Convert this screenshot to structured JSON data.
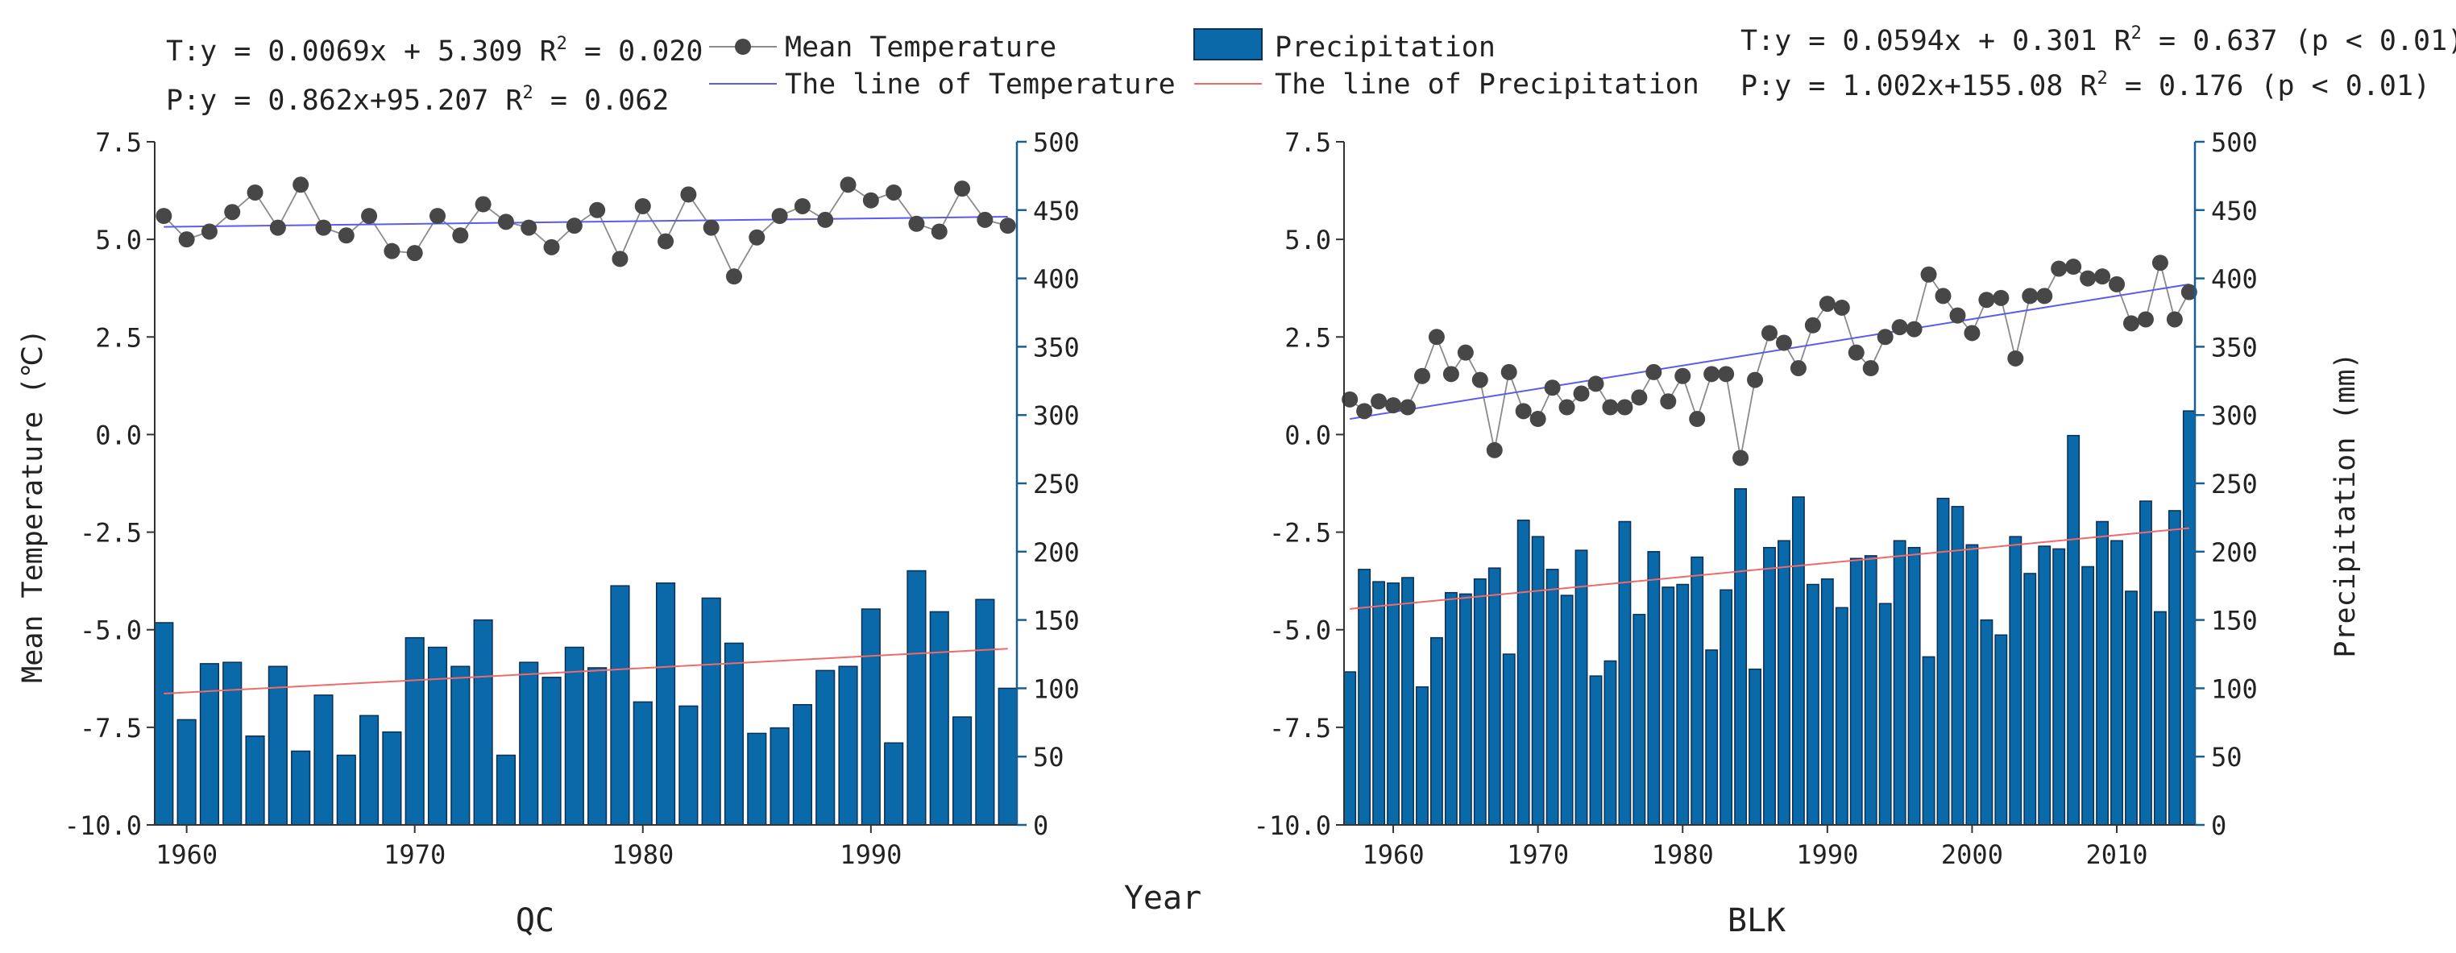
{
  "legend": {
    "mean_temperature": "Mean Temperature",
    "temperature_line": "The line of Temperature",
    "precipitation": "Precipitation",
    "precipitation_line": "The line of Precipitation"
  },
  "shared_xlabel": "Year",
  "colors": {
    "bar": "#0A69A9",
    "bar_edge": "#0B2F55",
    "marker": "#474747",
    "marker_line": "#8a8a8a",
    "temp_trend": "#5B5BF0",
    "precip_trend": "#F06A6A",
    "right_axis": "#1A5F8F"
  },
  "chart_data": [
    {
      "type": "bar+line",
      "name": "QC",
      "title": "QC",
      "equations": {
        "T": "T:y = 0.0069x + 5.309 R",
        "T_r2": " = 0.020",
        "P": "P:y = 0.862x+95.207 R",
        "P_r2": " = 0.062"
      },
      "ylabel_left": "Mean Temperature (℃)",
      "ylabel_right": "",
      "xlim": [
        1958.6,
        1996.4
      ],
      "ylim_left": [
        -10,
        7.5
      ],
      "ylim_right": [
        0,
        500
      ],
      "yticks_left": [
        "-10.0",
        "-7.5",
        "-5.0",
        "-2.5",
        "0.0",
        "2.5",
        "5.0",
        "7.5"
      ],
      "yticks_right": [
        "0",
        "50",
        "100",
        "150",
        "200",
        "250",
        "300",
        "350",
        "400",
        "450",
        "500"
      ],
      "xticks": [
        "1960",
        "1970",
        "1980",
        "1990"
      ],
      "years": [
        1959,
        1960,
        1961,
        1962,
        1963,
        1964,
        1965,
        1966,
        1967,
        1968,
        1969,
        1970,
        1971,
        1972,
        1973,
        1974,
        1975,
        1976,
        1977,
        1978,
        1979,
        1980,
        1981,
        1982,
        1983,
        1984,
        1985,
        1986,
        1987,
        1988,
        1989,
        1990,
        1991,
        1992,
        1993,
        1994,
        1995,
        1996
      ],
      "temperature": [
        5.6,
        5.0,
        5.2,
        5.7,
        6.2,
        5.3,
        6.4,
        5.3,
        5.1,
        5.6,
        4.7,
        4.65,
        5.6,
        5.1,
        5.9,
        5.45,
        5.3,
        4.8,
        5.35,
        5.75,
        4.5,
        5.85,
        4.95,
        6.15,
        5.3,
        4.05,
        5.05,
        5.6,
        5.85,
        5.5,
        6.4,
        6.0,
        6.2,
        5.4,
        5.2,
        6.3,
        5.5,
        5.35
      ],
      "precipitation": [
        148,
        77,
        118,
        119,
        65,
        116,
        54,
        95,
        51,
        80,
        68,
        137,
        130,
        116,
        150,
        51,
        119,
        108,
        130,
        115,
        175,
        90,
        177,
        87,
        166,
        133,
        67,
        71,
        88,
        113,
        116,
        158,
        60,
        186,
        156,
        79,
        165,
        100
      ],
      "temp_trend": [
        5.32,
        5.58
      ],
      "precip_trend": [
        96.1,
        129.0
      ]
    },
    {
      "type": "bar+line",
      "name": "BLK",
      "title": "BLK",
      "equations": {
        "T": "T:y = 0.0594x + 0.301 R",
        "T_r2": " = 0.637 (p < 0.01)",
        "P": "P:y = 1.002x+155.08 R",
        "P_r2": " = 0.176 (p < 0.01)"
      },
      "ylabel_left": "",
      "ylabel_right": "Precipitation (mm)",
      "xlim": [
        1956.6,
        2015.4
      ],
      "ylim_left": [
        -10,
        7.5
      ],
      "ylim_right": [
        0,
        500
      ],
      "yticks_left": [
        "-10.0",
        "-7.5",
        "-5.0",
        "-2.5",
        "0.0",
        "2.5",
        "5.0",
        "7.5"
      ],
      "yticks_right": [
        "0",
        "50",
        "100",
        "150",
        "200",
        "250",
        "300",
        "350",
        "400",
        "450",
        "500"
      ],
      "xticks": [
        "1960",
        "1970",
        "1980",
        "1990",
        "2000",
        "2010"
      ],
      "years": [
        1957,
        1958,
        1959,
        1960,
        1961,
        1962,
        1963,
        1964,
        1965,
        1966,
        1967,
        1968,
        1969,
        1970,
        1971,
        1972,
        1973,
        1974,
        1975,
        1976,
        1977,
        1978,
        1979,
        1980,
        1981,
        1982,
        1983,
        1984,
        1985,
        1986,
        1987,
        1988,
        1989,
        1990,
        1991,
        1992,
        1993,
        1994,
        1995,
        1996,
        1997,
        1998,
        1999,
        2000,
        2001,
        2002,
        2003,
        2004,
        2005,
        2006,
        2007,
        2008,
        2009,
        2010,
        2011,
        2012,
        2013,
        2014,
        2015
      ],
      "temperature": [
        0.9,
        0.6,
        0.85,
        0.75,
        0.7,
        1.5,
        2.5,
        1.55,
        2.1,
        1.4,
        -0.4,
        1.6,
        0.6,
        0.4,
        1.2,
        0.7,
        1.05,
        1.3,
        0.7,
        0.7,
        0.95,
        1.6,
        0.85,
        1.5,
        0.4,
        1.55,
        1.55,
        -0.6,
        1.4,
        2.6,
        2.35,
        1.7,
        2.8,
        3.35,
        3.25,
        2.1,
        1.7,
        2.5,
        2.75,
        2.7,
        4.1,
        3.55,
        3.05,
        2.6,
        3.45,
        3.5,
        1.95,
        3.55,
        3.55,
        4.25,
        4.3,
        4.0,
        4.05,
        3.85,
        2.85,
        2.95,
        4.4,
        2.95,
        3.65
      ],
      "precipitation": [
        112,
        187,
        178,
        177,
        181,
        101,
        137,
        170,
        169,
        180,
        188,
        125,
        223,
        211,
        187,
        168,
        201,
        109,
        120,
        222,
        154,
        200,
        174,
        176,
        196,
        128,
        172,
        246,
        114,
        203,
        208,
        240,
        176,
        180,
        159,
        195,
        197,
        162,
        208,
        203,
        123,
        239,
        233,
        205,
        150,
        139,
        211,
        184,
        204,
        202,
        285,
        189,
        222,
        208,
        171,
        237,
        156,
        230,
        303
      ],
      "temp_trend": [
        0.4,
        3.85
      ],
      "precip_trend": [
        158.1,
        217.2
      ]
    }
  ]
}
